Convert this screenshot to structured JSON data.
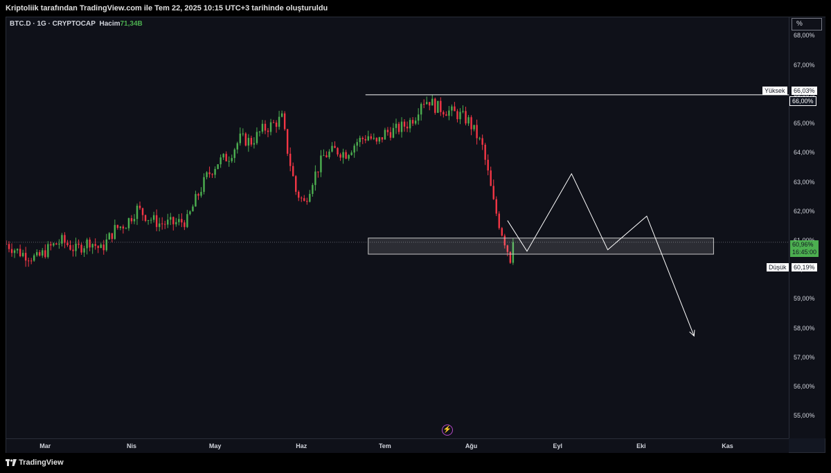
{
  "header": {
    "title": "Kriptoliik tarafından TradingView.com ile Tem 22, 2025 10:15 UTC+3 tarihinde oluşturuldu"
  },
  "legend": {
    "symbol": "BTC.D · 1G · CRYPTOCAP",
    "volume_label": "Hacim",
    "volume_value": "71,34B"
  },
  "scale_button": "%",
  "footer": {
    "brand": "TradingView"
  },
  "colors": {
    "up": "#4caf50",
    "down": "#f23645",
    "background": "#0f1119",
    "drawing": "#ffffff",
    "event": "#b548c6"
  },
  "icons": {
    "event": "bolt-icon",
    "logo": "tradingview-logo-icon"
  },
  "price_labels": {
    "high_label": "Yüksek",
    "high_value": "66,03%",
    "line_value": "66,00%",
    "low_label": "Düşük",
    "low_value": "60,19%",
    "last_value": "60,96%",
    "countdown": "16:45:00"
  },
  "chart_data": {
    "type": "candlestick",
    "y_ticks": [
      "68,00%",
      "67,00%",
      "66,00%",
      "65,00%",
      "64,00%",
      "63,00%",
      "62,00%",
      "61,00%",
      "60,00%",
      "59,00%",
      "58,00%",
      "57,00%",
      "56,00%",
      "55,00%"
    ],
    "x_ticks": [
      "Mar",
      "Nis",
      "May",
      "Haz",
      "Tem",
      "Ağu",
      "Eyl",
      "Eki",
      "Kas"
    ],
    "ylim": [
      54.25,
      68.65
    ],
    "x_range": [
      "2025-02-15",
      "2025-11-23"
    ],
    "last_price": 60.96,
    "high": 66.03,
    "low": 60.19,
    "price_path": [
      [
        "2025-02-15",
        60.9
      ],
      [
        "2025-02-20",
        60.6
      ],
      [
        "2025-02-26",
        60.4
      ],
      [
        "2025-03-03",
        60.8
      ],
      [
        "2025-03-07",
        61.0
      ],
      [
        "2025-03-12",
        60.7
      ],
      [
        "2025-03-17",
        61.0
      ],
      [
        "2025-03-21",
        60.7
      ],
      [
        "2025-03-26",
        61.4
      ],
      [
        "2025-03-30",
        61.6
      ],
      [
        "2025-04-03",
        62.1
      ],
      [
        "2025-04-07",
        61.8
      ],
      [
        "2025-04-11",
        61.6
      ],
      [
        "2025-04-16",
        61.6
      ],
      [
        "2025-04-21",
        61.7
      ],
      [
        "2025-04-24",
        62.4
      ],
      [
        "2025-04-28",
        63.2
      ],
      [
        "2025-05-02",
        63.7
      ],
      [
        "2025-05-06",
        63.9
      ],
      [
        "2025-05-10",
        64.5
      ],
      [
        "2025-05-14",
        64.4
      ],
      [
        "2025-05-18",
        64.8
      ],
      [
        "2025-05-22",
        65.0
      ],
      [
        "2025-05-25",
        65.2
      ],
      [
        "2025-05-27",
        64.1
      ],
      [
        "2025-05-30",
        62.7
      ],
      [
        "2025-06-02",
        62.3
      ],
      [
        "2025-06-05",
        63.1
      ],
      [
        "2025-06-09",
        63.9
      ],
      [
        "2025-06-13",
        64.1
      ],
      [
        "2025-06-17",
        64.0
      ],
      [
        "2025-06-21",
        64.4
      ],
      [
        "2025-06-25",
        64.6
      ],
      [
        "2025-06-28",
        64.3
      ],
      [
        "2025-07-01",
        64.7
      ],
      [
        "2025-07-05",
        64.8
      ],
      [
        "2025-07-09",
        65.0
      ],
      [
        "2025-07-12",
        65.3
      ],
      [
        "2025-07-14",
        65.8
      ],
      [
        "2025-07-17",
        65.8
      ],
      [
        "2025-07-19",
        65.6
      ],
      [
        "2025-07-22",
        65.5
      ],
      [
        "2025-07-25",
        65.4
      ],
      [
        "2025-07-28",
        65.3
      ],
      [
        "2025-07-31",
        65.1
      ],
      [
        "2025-08-03",
        64.6
      ],
      [
        "2025-08-05",
        64.2
      ],
      [
        "2025-08-07",
        63.3
      ],
      [
        "2025-08-09",
        62.3
      ],
      [
        "2025-08-11",
        61.6
      ],
      [
        "2025-08-13",
        61.0
      ],
      [
        "2025-08-15",
        60.4
      ],
      [
        "2025-08-16",
        60.96
      ]
    ],
    "drawings": {
      "resistance_level": 66.0,
      "resistance_start": "2025-06-24",
      "support_zone": {
        "from": "2025-06-25",
        "to": "2025-10-27",
        "low": 60.55,
        "high": 61.1
      },
      "projection_path": [
        [
          "2025-08-14",
          61.7
        ],
        [
          "2025-08-21",
          60.65
        ],
        [
          "2025-09-06",
          63.3
        ],
        [
          "2025-09-19",
          60.7
        ],
        [
          "2025-10-03",
          61.85
        ],
        [
          "2025-10-20",
          57.75
        ]
      ]
    }
  }
}
